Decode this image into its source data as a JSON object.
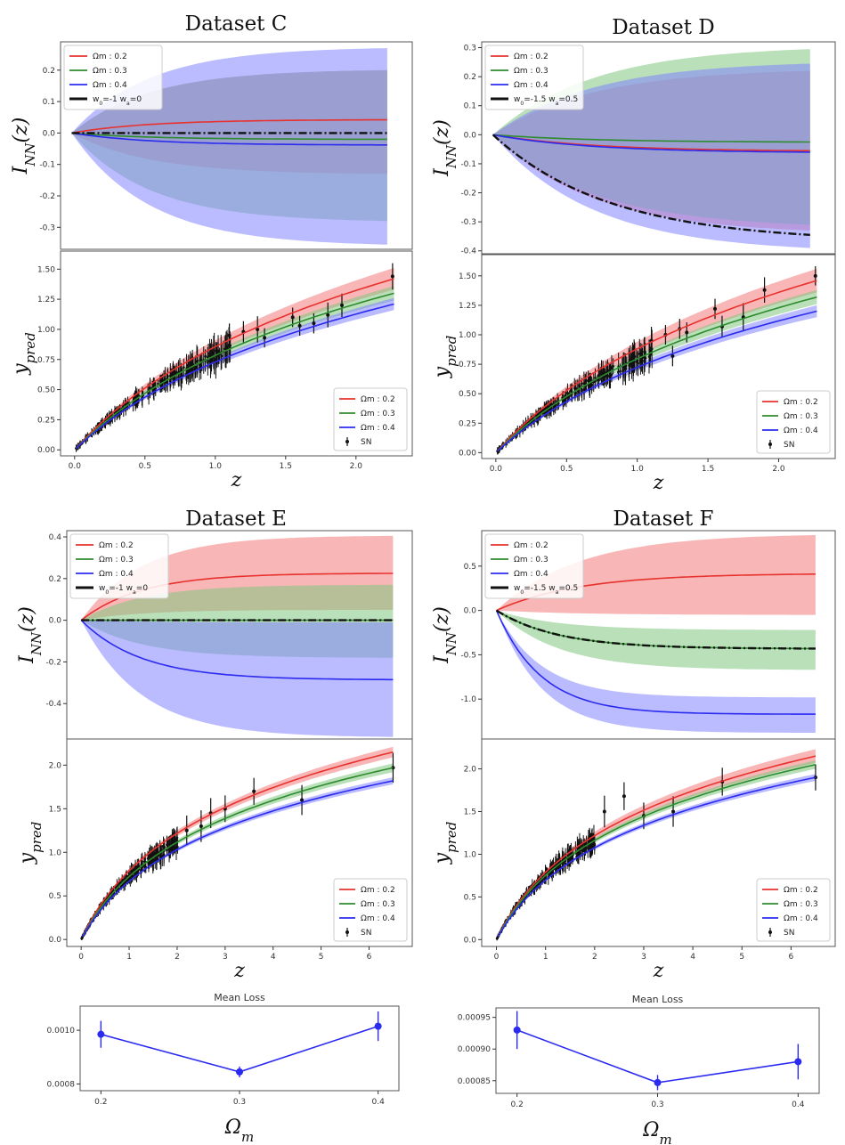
{
  "colors": {
    "red": "#e8322e",
    "green": "#2e8b2e",
    "blue": "#2b2bf0",
    "black": "#111111",
    "band_red": "#f27a7a",
    "band_green": "#7fc77f",
    "band_blue": "#8484ff"
  },
  "panels": [
    {
      "title": "Dataset C",
      "top": {
        "ylabel": "I_NN(z)",
        "ylabel_main": "I",
        "ylabel_sub": "NN",
        "ylabel_tail": "(z)",
        "xlim": [
          -0.08,
          2.45
        ],
        "ylim": [
          -0.37,
          0.29
        ],
        "yticks": [
          -0.3,
          -0.2,
          -0.1,
          0.0,
          0.1,
          0.2
        ],
        "ytick_labels": [
          "-0.3",
          "-0.2",
          "-0.1",
          "0.0",
          "0.1",
          "0.2"
        ],
        "xmax": 2.27,
        "series": [
          {
            "name": "Ωm : 0.2",
            "color": "red",
            "shape": "sat",
            "end": 0.042,
            "band_lo": -0.13,
            "band_hi": 0.2,
            "k": 1.8
          },
          {
            "name": "Ωm : 0.3",
            "color": "green",
            "shape": "sat",
            "end": -0.02,
            "band_lo": -0.28,
            "band_hi": 0.2,
            "k": 1.8
          },
          {
            "name": "Ωm : 0.4",
            "color": "blue",
            "shape": "sat",
            "end": -0.038,
            "band_lo": -0.355,
            "band_hi": 0.27,
            "k": 1.8
          }
        ],
        "reference": {
          "name": "w0=-1 wa=0",
          "label_a": "w",
          "label_a_sub": "0",
          "label_b": "=-1 ",
          "label_c": "w",
          "label_c_sub": "a",
          "label_d": "=0",
          "end": 0.0,
          "shape": "sat",
          "k": 1.8
        }
      },
      "bottom": {
        "ylabel": "y_pred",
        "ylabel_main": "y",
        "ylabel_sub": "pred",
        "xlabel": "z",
        "xlim": [
          -0.1,
          2.4
        ],
        "ylim": [
          -0.05,
          1.65
        ],
        "xticks": [
          0.0,
          0.5,
          1.0,
          1.5,
          2.0
        ],
        "xtick_labels": [
          "0.0",
          "0.5",
          "1.0",
          "1.5",
          "2.0"
        ],
        "yticks": [
          0.0,
          0.25,
          0.5,
          0.75,
          1.0,
          1.25,
          1.5
        ],
        "ytick_labels": [
          "0.00",
          "0.25",
          "0.50",
          "0.75",
          "1.00",
          "1.25",
          "1.50"
        ],
        "xmax": 2.27,
        "curves": [
          {
            "name": "Ωm : 0.2",
            "color": "red",
            "end": 1.42,
            "band": 0.09
          },
          {
            "name": "Ωm : 0.3",
            "color": "green",
            "end": 1.3,
            "band": 0.06
          },
          {
            "name": "Ωm : 0.4",
            "color": "blue",
            "end": 1.21,
            "band": 0.05
          }
        ],
        "sn_label": "SN",
        "sn_sparse": [
          [
            1.1,
            0.95
          ],
          [
            1.2,
            0.98
          ],
          [
            1.3,
            1.0
          ],
          [
            1.35,
            0.93
          ],
          [
            1.55,
            1.1
          ],
          [
            1.6,
            1.03
          ],
          [
            1.7,
            1.05
          ],
          [
            1.8,
            1.12
          ],
          [
            1.9,
            1.2
          ],
          [
            2.26,
            1.44
          ]
        ]
      }
    },
    {
      "title": "Dataset D",
      "top": {
        "ylabel": "I_NN(z)",
        "ylabel_main": "I",
        "ylabel_sub": "NN",
        "ylabel_tail": "(z)",
        "xlim": [
          -0.08,
          2.45
        ],
        "ylim": [
          -0.41,
          0.32
        ],
        "yticks": [
          -0.4,
          -0.3,
          -0.2,
          -0.1,
          0.0,
          0.1,
          0.2,
          0.3
        ],
        "ytick_labels": [
          "-0.4",
          "-0.3",
          "-0.2",
          "-0.1",
          "0.0",
          "0.1",
          "0.2",
          "0.3"
        ],
        "xmax": 2.27,
        "series": [
          {
            "name": "Ωm : 0.2",
            "color": "red",
            "shape": "sat",
            "end": -0.055,
            "band_lo": -0.33,
            "band_hi": 0.22,
            "k": 1.4
          },
          {
            "name": "Ωm : 0.3",
            "color": "green",
            "shape": "sat",
            "end": -0.025,
            "band_lo": -0.31,
            "band_hi": 0.295,
            "k": 1.4
          },
          {
            "name": "Ωm : 0.4",
            "color": "blue",
            "shape": "sat",
            "end": -0.06,
            "band_lo": -0.39,
            "band_hi": 0.245,
            "k": 1.4
          }
        ],
        "reference": {
          "name": "w0=-1.5 wa=0.5",
          "label_a": "w",
          "label_a_sub": "0",
          "label_b": "=-1.5 ",
          "label_c": "w",
          "label_c_sub": "a",
          "label_d": "=0.5",
          "end": -0.345,
          "shape": "sat",
          "k": 1.2
        }
      },
      "bottom": {
        "ylabel": "y_pred",
        "ylabel_main": "y",
        "ylabel_sub": "pred",
        "xlabel": "z",
        "xlim": [
          -0.1,
          2.4
        ],
        "ylim": [
          -0.05,
          1.68
        ],
        "xticks": [
          0.0,
          0.5,
          1.0,
          1.5,
          2.0
        ],
        "xtick_labels": [
          "0.0",
          "0.5",
          "1.0",
          "1.5",
          "2.0"
        ],
        "yticks": [
          0.0,
          0.25,
          0.5,
          0.75,
          1.0,
          1.25,
          1.5
        ],
        "ytick_labels": [
          "0.00",
          "0.25",
          "0.50",
          "0.75",
          "1.00",
          "1.25",
          "1.50"
        ],
        "xmax": 2.27,
        "curves": [
          {
            "name": "Ωm : 0.2",
            "color": "red",
            "end": 1.46,
            "band": 0.1
          },
          {
            "name": "Ωm : 0.3",
            "color": "green",
            "end": 1.32,
            "band": 0.06
          },
          {
            "name": "Ωm : 0.4",
            "color": "blue",
            "end": 1.2,
            "band": 0.05
          }
        ],
        "sn_label": "SN",
        "sn_sparse": [
          [
            1.1,
            0.95
          ],
          [
            1.2,
            1.0
          ],
          [
            1.25,
            0.82
          ],
          [
            1.3,
            1.05
          ],
          [
            1.35,
            1.02
          ],
          [
            1.55,
            1.22
          ],
          [
            1.6,
            1.07
          ],
          [
            1.75,
            1.15
          ],
          [
            1.9,
            1.38
          ],
          [
            2.26,
            1.5
          ]
        ]
      }
    },
    {
      "title": "Dataset E",
      "top": {
        "ylabel": "I_NN(z)",
        "ylabel_main": "I",
        "ylabel_sub": "NN",
        "ylabel_tail": "(z)",
        "xlim": [
          -0.3,
          6.9
        ],
        "ylim": [
          -0.57,
          0.43
        ],
        "yticks": [
          -0.4,
          -0.2,
          0.0,
          0.2,
          0.4
        ],
        "ytick_labels": [
          "-0.4",
          "-0.2",
          "0.0",
          "0.2",
          "0.4"
        ],
        "xmax": 6.5,
        "series": [
          {
            "name": "Ωm : 0.2",
            "color": "red",
            "shape": "sat",
            "end": 0.225,
            "band_lo": 0.05,
            "band_hi": 0.405,
            "k": 0.8
          },
          {
            "name": "Ωm : 0.3",
            "color": "green",
            "shape": "sat",
            "end": 0.0,
            "band_lo": -0.18,
            "band_hi": 0.17,
            "k": 0.8
          },
          {
            "name": "Ωm : 0.4",
            "color": "blue",
            "shape": "sat",
            "end": -0.285,
            "band_lo": -0.56,
            "band_hi": -0.01,
            "k": 0.8
          }
        ],
        "reference": {
          "name": "w0=-1 wa=0",
          "label_a": "w",
          "label_a_sub": "0",
          "label_b": "=-1 ",
          "label_c": "w",
          "label_c_sub": "a",
          "label_d": "=0",
          "end": 0.0,
          "shape": "sat",
          "k": 0.8
        }
      },
      "bottom": {
        "ylabel": "y_pred",
        "ylabel_main": "y",
        "ylabel_sub": "pred",
        "xlabel": "z",
        "xlim": [
          -0.3,
          6.9
        ],
        "ylim": [
          -0.08,
          2.3
        ],
        "xticks": [
          0,
          1,
          2,
          3,
          4,
          5,
          6
        ],
        "xtick_labels": [
          "0",
          "1",
          "2",
          "3",
          "4",
          "5",
          "6"
        ],
        "yticks": [
          0.0,
          0.5,
          1.0,
          1.5,
          2.0
        ],
        "ytick_labels": [
          "0.0",
          "0.5",
          "1.0",
          "1.5",
          "2.0"
        ],
        "xmax": 6.5,
        "curves": [
          {
            "name": "Ωm : 0.2",
            "color": "red",
            "end": 2.15,
            "band": 0.06
          },
          {
            "name": "Ωm : 0.3",
            "color": "green",
            "end": 1.97,
            "band": 0.05
          },
          {
            "name": "Ωm : 0.4",
            "color": "blue",
            "end": 1.82,
            "band": 0.04
          }
        ],
        "sn_label": "SN",
        "sn_sparse": [
          [
            2.2,
            1.25
          ],
          [
            2.5,
            1.3
          ],
          [
            2.7,
            1.45
          ],
          [
            3.0,
            1.5
          ],
          [
            3.6,
            1.7
          ],
          [
            4.6,
            1.6
          ],
          [
            6.5,
            1.97
          ]
        ]
      }
    },
    {
      "title": "Dataset F",
      "top": {
        "ylabel": "I_NN(z)",
        "ylabel_main": "I",
        "ylabel_sub": "NN",
        "ylabel_tail": "(z)",
        "xlim": [
          -0.3,
          6.9
        ],
        "ylim": [
          -1.45,
          0.9
        ],
        "yticks": [
          -1.0,
          -0.5,
          0.0,
          0.5
        ],
        "ytick_labels": [
          "-1.0",
          "-0.5",
          "0.0",
          "0.5"
        ],
        "xmax": 6.5,
        "series": [
          {
            "name": "Ωm : 0.2",
            "color": "red",
            "shape": "sat",
            "end": 0.41,
            "band_lo": -0.05,
            "band_hi": 0.85,
            "k": 0.6
          },
          {
            "name": "Ωm : 0.3",
            "color": "green",
            "shape": "sat",
            "end": -0.43,
            "band_lo": -0.67,
            "band_hi": -0.22,
            "k": 0.8
          },
          {
            "name": "Ωm : 0.4",
            "color": "blue",
            "shape": "sat",
            "end": -1.17,
            "band_lo": -1.38,
            "band_hi": -0.98,
            "k": 1.1
          }
        ],
        "reference": {
          "name": "w0=-1.5 wa=0.5",
          "label_a": "w",
          "label_a_sub": "0",
          "label_b": "=-1.5 ",
          "label_c": "w",
          "label_c_sub": "a",
          "label_d": "=0.5",
          "end": -0.43,
          "shape": "sat",
          "k": 0.8
        }
      },
      "bottom": {
        "ylabel": "y_pred",
        "ylabel_main": "y",
        "ylabel_sub": "pred",
        "xlabel": "z",
        "xlim": [
          -0.3,
          6.9
        ],
        "ylim": [
          -0.08,
          2.35
        ],
        "xticks": [
          0,
          1,
          2,
          3,
          4,
          5,
          6
        ],
        "xtick_labels": [
          "0",
          "1",
          "2",
          "3",
          "4",
          "5",
          "6"
        ],
        "yticks": [
          0.0,
          0.5,
          1.0,
          1.5,
          2.0
        ],
        "ytick_labels": [
          "0.0",
          "0.5",
          "1.0",
          "1.5",
          "2.0"
        ],
        "xmax": 6.5,
        "curves": [
          {
            "name": "Ωm : 0.2",
            "color": "red",
            "end": 2.15,
            "band": 0.08
          },
          {
            "name": "Ωm : 0.3",
            "color": "green",
            "end": 2.05,
            "band": 0.05
          },
          {
            "name": "Ωm : 0.4",
            "color": "blue",
            "end": 1.9,
            "band": 0.04
          }
        ],
        "sn_label": "SN",
        "sn_sparse": [
          [
            2.2,
            1.5
          ],
          [
            2.6,
            1.68
          ],
          [
            3.0,
            1.45
          ],
          [
            3.6,
            1.5
          ],
          [
            4.6,
            1.85
          ],
          [
            6.5,
            1.9
          ]
        ]
      }
    }
  ],
  "loss_charts": [
    {
      "title": "Mean Loss",
      "xlabel": "Ω_m",
      "xlabel_main": "Ω",
      "xlabel_sub": "m",
      "xlim": [
        0.185,
        0.415
      ],
      "ylim": [
        0.000775,
        0.00109
      ],
      "xticks": [
        0.2,
        0.3,
        0.4
      ],
      "xtick_labels": [
        "0.2",
        "0.3",
        "0.4"
      ],
      "yticks": [
        0.0008,
        0.001
      ],
      "ytick_labels": [
        "0.0008",
        "0.0010"
      ],
      "x": [
        0.2,
        0.3,
        0.4
      ],
      "y": [
        0.000985,
        0.000845,
        0.001015
      ],
      "yerr": [
        5e-05,
        2e-05,
        5.5e-05
      ]
    },
    {
      "title": "Mean Loss",
      "xlabel": "Ω_m",
      "xlabel_main": "Ω",
      "xlabel_sub": "m",
      "xlim": [
        0.185,
        0.415
      ],
      "ylim": [
        0.00083,
        0.000965
      ],
      "xticks": [
        0.2,
        0.3,
        0.4
      ],
      "xtick_labels": [
        "0.2",
        "0.3",
        "0.4"
      ],
      "yticks": [
        0.00085,
        0.0009,
        0.00095
      ],
      "ytick_labels": [
        "0.00085",
        "0.00090",
        "0.00095"
      ],
      "x": [
        0.2,
        0.3,
        0.4
      ],
      "y": [
        0.00093,
        0.000847,
        0.00088
      ],
      "yerr": [
        3e-05,
        1.2e-05,
        2.8e-05
      ]
    }
  ],
  "chart_data": [
    {
      "type": "line",
      "title": "Dataset C",
      "ylabel": "I_NN(z)",
      "series": [
        {
          "name": "Ωm : 0.2",
          "end_value": 0.042
        },
        {
          "name": "Ωm : 0.3",
          "end_value": -0.02
        },
        {
          "name": "Ωm : 0.4",
          "end_value": -0.038
        },
        {
          "name": "w0=-1 wa=0",
          "end_value": 0.0
        }
      ],
      "ylim": [
        -0.37,
        0.29
      ]
    },
    {
      "type": "line",
      "title": "Dataset C",
      "xlabel": "z",
      "ylabel": "y_pred",
      "series": [
        {
          "name": "Ωm : 0.2",
          "end_value": 1.42
        },
        {
          "name": "Ωm : 0.3",
          "end_value": 1.3
        },
        {
          "name": "Ωm : 0.4",
          "end_value": 1.21
        },
        {
          "name": "SN"
        }
      ]
    },
    {
      "type": "line",
      "title": "Dataset D",
      "ylabel": "I_NN(z)",
      "series": [
        {
          "name": "Ωm : 0.2",
          "end_value": -0.055
        },
        {
          "name": "Ωm : 0.3",
          "end_value": -0.025
        },
        {
          "name": "Ωm : 0.4",
          "end_value": -0.06
        },
        {
          "name": "w0=-1.5 wa=0.5",
          "end_value": -0.345
        }
      ]
    },
    {
      "type": "line",
      "title": "Dataset D",
      "xlabel": "z",
      "ylabel": "y_pred",
      "series": [
        {
          "name": "Ωm : 0.2",
          "end_value": 1.46
        },
        {
          "name": "Ωm : 0.3",
          "end_value": 1.32
        },
        {
          "name": "Ωm : 0.4",
          "end_value": 1.2
        },
        {
          "name": "SN"
        }
      ]
    },
    {
      "type": "line",
      "title": "Dataset E",
      "ylabel": "I_NN(z)",
      "series": [
        {
          "name": "Ωm : 0.2",
          "end_value": 0.225
        },
        {
          "name": "Ωm : 0.3",
          "end_value": 0.0
        },
        {
          "name": "Ωm : 0.4",
          "end_value": -0.285
        },
        {
          "name": "w0=-1 wa=0",
          "end_value": 0.0
        }
      ]
    },
    {
      "type": "line",
      "title": "Dataset E",
      "xlabel": "z",
      "ylabel": "y_pred",
      "series": [
        {
          "name": "Ωm : 0.2",
          "end_value": 2.15
        },
        {
          "name": "Ωm : 0.3",
          "end_value": 1.97
        },
        {
          "name": "Ωm : 0.4",
          "end_value": 1.82
        },
        {
          "name": "SN"
        }
      ]
    },
    {
      "type": "line",
      "title": "Dataset F",
      "ylabel": "I_NN(z)",
      "series": [
        {
          "name": "Ωm : 0.2",
          "end_value": 0.41
        },
        {
          "name": "Ωm : 0.3",
          "end_value": -0.43
        },
        {
          "name": "Ωm : 0.4",
          "end_value": -1.17
        },
        {
          "name": "w0=-1.5 wa=0.5",
          "end_value": -0.43
        }
      ]
    },
    {
      "type": "line",
      "title": "Dataset F",
      "xlabel": "z",
      "ylabel": "y_pred",
      "series": [
        {
          "name": "Ωm : 0.2",
          "end_value": 2.15
        },
        {
          "name": "Ωm : 0.3",
          "end_value": 2.05
        },
        {
          "name": "Ωm : 0.4",
          "end_value": 1.9
        },
        {
          "name": "SN"
        }
      ]
    },
    {
      "type": "scatter",
      "title": "Mean Loss",
      "xlabel": "Ω_m",
      "x": [
        0.2,
        0.3,
        0.4
      ],
      "y": [
        0.000985,
        0.000845,
        0.001015
      ]
    },
    {
      "type": "scatter",
      "title": "Mean Loss",
      "xlabel": "Ω_m",
      "x": [
        0.2,
        0.3,
        0.4
      ],
      "y": [
        0.00093,
        0.000847,
        0.00088
      ]
    }
  ]
}
